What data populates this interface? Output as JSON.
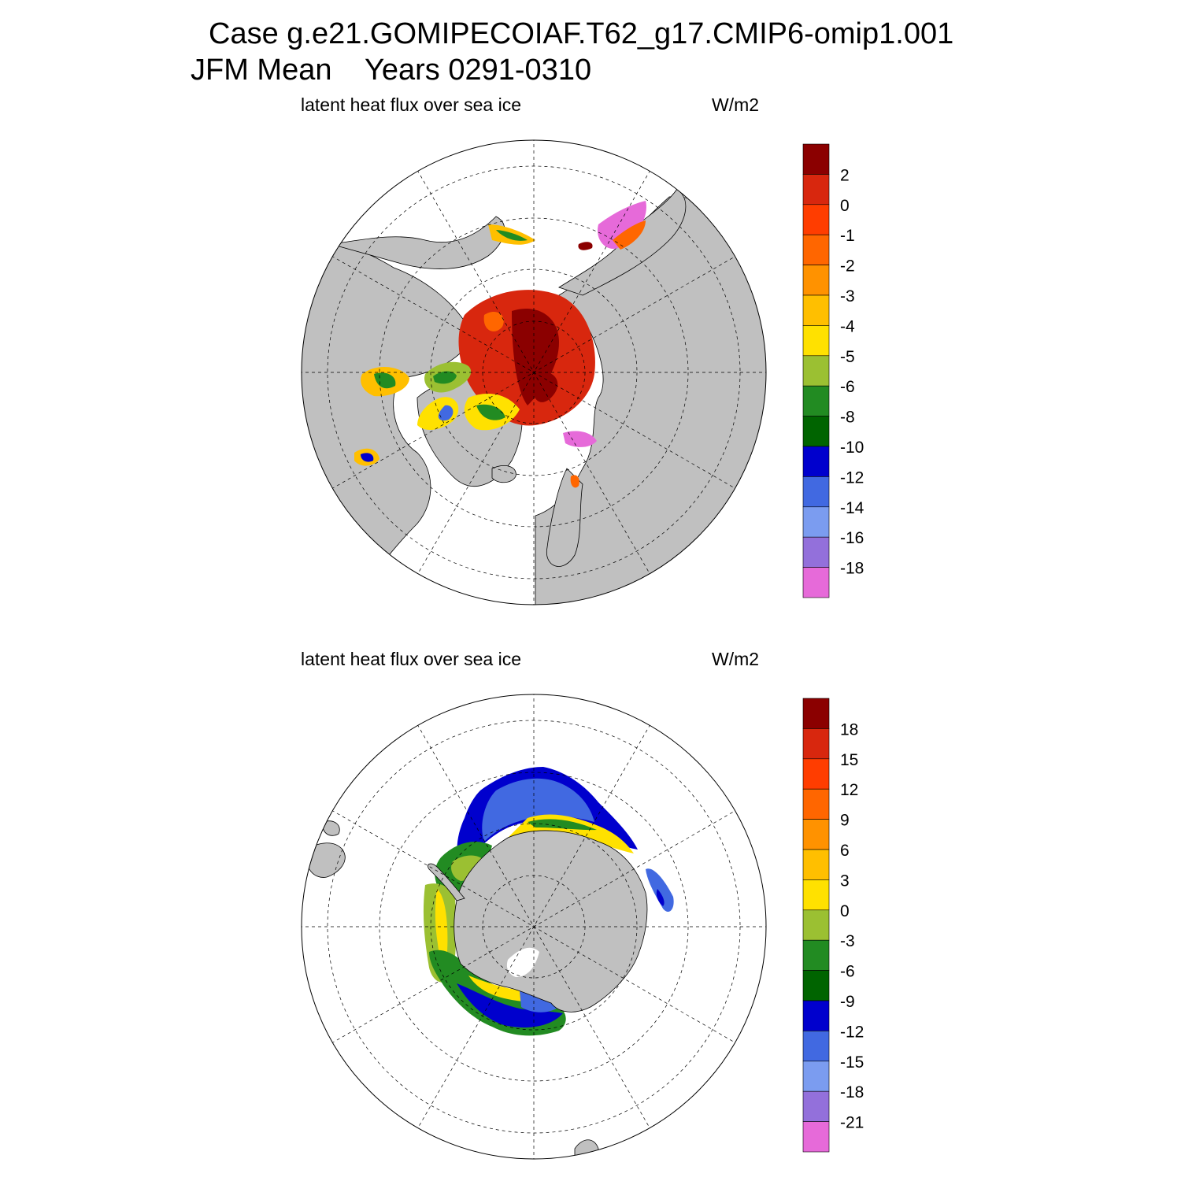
{
  "header": {
    "case_line": "Case g.e21.GOMIPECOIAF.T62_g17.CMIP6-omip1.001",
    "season": "JFM Mean",
    "years": "Years 0291-0310"
  },
  "chart_data": [
    {
      "type": "heatmap",
      "projection": "north-polar-stereographic",
      "title": "latent heat flux over sea ice",
      "units": "W/m2",
      "colorbar": {
        "labels": [
          "2",
          "0",
          "-1",
          "-2",
          "-3",
          "-4",
          "-5",
          "-6",
          "-8",
          "-10",
          "-12",
          "-14",
          "-16",
          "-18"
        ],
        "colors": [
          "#8B0000",
          "#D8270E",
          "#FF3D00",
          "#FF6600",
          "#FF9200",
          "#FFBF00",
          "#FFE100",
          "#9BC032",
          "#228B22",
          "#006400",
          "#0000CD",
          "#4169E1",
          "#7B9CF0",
          "#9370DB",
          "#E66AD9"
        ]
      }
    },
    {
      "type": "heatmap",
      "projection": "south-polar-stereographic",
      "title": "latent heat flux over sea ice",
      "units": "W/m2",
      "colorbar": {
        "labels": [
          "18",
          "15",
          "12",
          "9",
          "6",
          "3",
          "0",
          "-3",
          "-6",
          "-9",
          "-12",
          "-15",
          "-18",
          "-21"
        ],
        "colors": [
          "#8B0000",
          "#D8270E",
          "#FF3D00",
          "#FF6600",
          "#FF9200",
          "#FFBF00",
          "#FFE100",
          "#9BC032",
          "#228B22",
          "#006400",
          "#0000CD",
          "#4169E1",
          "#7B9CF0",
          "#9370DB",
          "#E66AD9"
        ]
      }
    }
  ]
}
